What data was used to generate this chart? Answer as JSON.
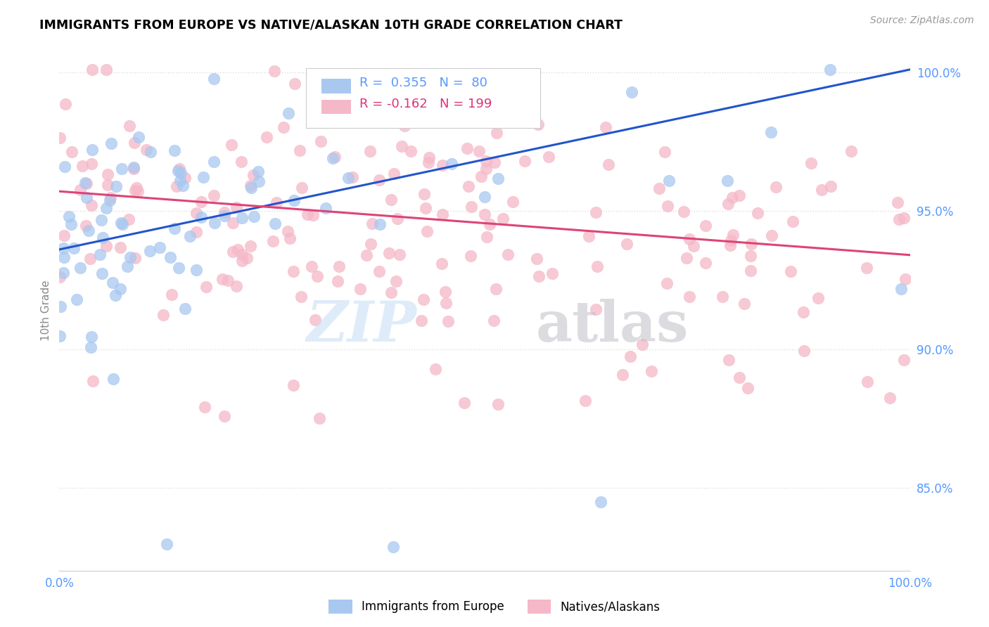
{
  "title": "IMMIGRANTS FROM EUROPE VS NATIVE/ALASKAN 10TH GRADE CORRELATION CHART",
  "source": "Source: ZipAtlas.com",
  "ylabel": "10th Grade",
  "xlim": [
    0.0,
    1.0
  ],
  "ylim": [
    0.82,
    1.008
  ],
  "yticks": [
    0.85,
    0.9,
    0.95,
    1.0
  ],
  "ytick_labels": [
    "85.0%",
    "90.0%",
    "95.0%",
    "100.0%"
  ],
  "r_blue": "0.355",
  "n_blue": "80",
  "r_pink": "-0.162",
  "n_pink": "199",
  "blue_color": "#A8C8F0",
  "pink_color": "#F5B8C8",
  "line_blue": "#2255CC",
  "line_pink": "#DD4477",
  "tick_color": "#5599FF",
  "watermark_zip_color": "#C8DFF5",
  "watermark_atlas_color": "#C0C0C8"
}
